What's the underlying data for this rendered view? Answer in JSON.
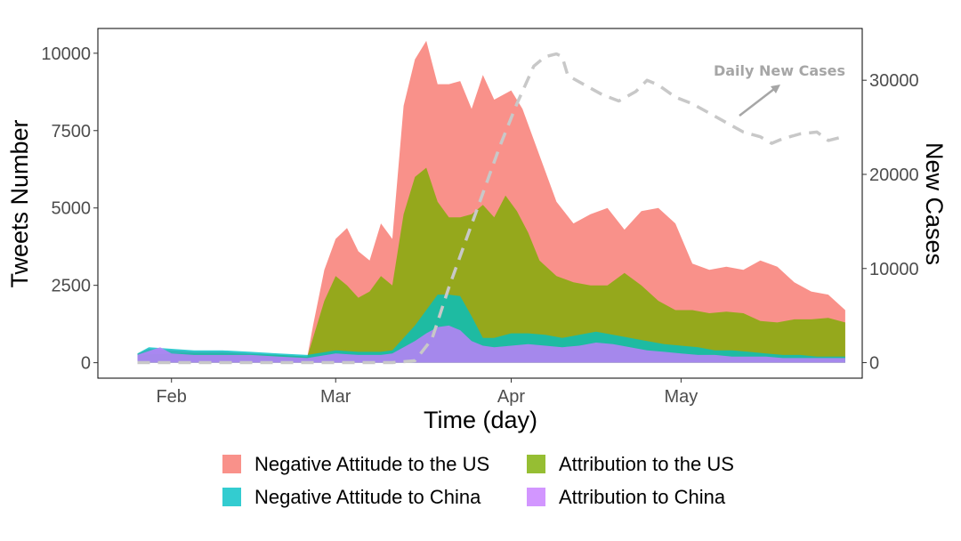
{
  "chart_data": {
    "type": "area",
    "xlabel": "Time (day)",
    "ylabel": "Tweets Number",
    "y2label": "New Cases",
    "x_tick_labels": [
      "Feb",
      "Mar",
      "Apr",
      "May"
    ],
    "x_tick_dates": [
      "2020-02-01",
      "2020-03-01",
      "2020-04-01",
      "2020-05-01"
    ],
    "xlim": [
      "2020-01-19",
      "2020-06-02"
    ],
    "ylim": [
      -500,
      10800
    ],
    "y_ticks": [
      0,
      2500,
      5000,
      7500,
      10000
    ],
    "y_tick_labels": [
      "0",
      "2500",
      "5000",
      "7500",
      "10000"
    ],
    "y2lim": [
      -1650,
      35500
    ],
    "y2_ticks": [
      0,
      10000,
      20000,
      30000
    ],
    "y2_tick_labels": [
      "0",
      "10000",
      "20000",
      "30000"
    ],
    "stacking": "overlapping areas drawn in legend order (each series from zero)",
    "grid": false,
    "legend_position": "bottom",
    "annotation": "Daily New Cases",
    "series": [
      {
        "name": "Negative Attitude to the US",
        "color": "#f8766d",
        "points": [
          [
            "2020-01-26",
            300
          ],
          [
            "2020-01-28",
            450
          ],
          [
            "2020-02-01",
            400
          ],
          [
            "2020-02-05",
            350
          ],
          [
            "2020-02-10",
            350
          ],
          [
            "2020-02-15",
            300
          ],
          [
            "2020-02-20",
            250
          ],
          [
            "2020-02-25",
            200
          ],
          [
            "2020-02-26",
            1200
          ],
          [
            "2020-02-28",
            3000
          ],
          [
            "2020-03-01",
            4000
          ],
          [
            "2020-03-03",
            4350
          ],
          [
            "2020-03-05",
            3600
          ],
          [
            "2020-03-07",
            3300
          ],
          [
            "2020-03-09",
            4500
          ],
          [
            "2020-03-11",
            4000
          ],
          [
            "2020-03-13",
            8300
          ],
          [
            "2020-03-15",
            9800
          ],
          [
            "2020-03-17",
            10400
          ],
          [
            "2020-03-19",
            9000
          ],
          [
            "2020-03-21",
            9000
          ],
          [
            "2020-03-23",
            9100
          ],
          [
            "2020-03-25",
            8200
          ],
          [
            "2020-03-27",
            9300
          ],
          [
            "2020-03-29",
            8500
          ],
          [
            "2020-04-01",
            8800
          ],
          [
            "2020-04-03",
            8200
          ],
          [
            "2020-04-06",
            6700
          ],
          [
            "2020-04-09",
            5200
          ],
          [
            "2020-04-12",
            4500
          ],
          [
            "2020-04-15",
            4800
          ],
          [
            "2020-04-18",
            5000
          ],
          [
            "2020-04-21",
            4300
          ],
          [
            "2020-04-24",
            4900
          ],
          [
            "2020-04-27",
            5000
          ],
          [
            "2020-04-30",
            4500
          ],
          [
            "2020-05-03",
            3200
          ],
          [
            "2020-05-06",
            3000
          ],
          [
            "2020-05-09",
            3100
          ],
          [
            "2020-05-12",
            3000
          ],
          [
            "2020-05-15",
            3300
          ],
          [
            "2020-05-18",
            3100
          ],
          [
            "2020-05-21",
            2600
          ],
          [
            "2020-05-24",
            2300
          ],
          [
            "2020-05-27",
            2200
          ],
          [
            "2020-05-30",
            1700
          ]
        ]
      },
      {
        "name": "Attribution to the US",
        "color": "#7cae00",
        "points": [
          [
            "2020-01-26",
            250
          ],
          [
            "2020-02-01",
            300
          ],
          [
            "2020-02-10",
            300
          ],
          [
            "2020-02-20",
            250
          ],
          [
            "2020-02-25",
            200
          ],
          [
            "2020-02-26",
            800
          ],
          [
            "2020-02-28",
            2000
          ],
          [
            "2020-03-01",
            2800
          ],
          [
            "2020-03-03",
            2500
          ],
          [
            "2020-03-05",
            2100
          ],
          [
            "2020-03-07",
            2300
          ],
          [
            "2020-03-09",
            2800
          ],
          [
            "2020-03-11",
            2500
          ],
          [
            "2020-03-13",
            4800
          ],
          [
            "2020-03-15",
            6000
          ],
          [
            "2020-03-17",
            6300
          ],
          [
            "2020-03-19",
            5200
          ],
          [
            "2020-03-21",
            4700
          ],
          [
            "2020-03-23",
            4700
          ],
          [
            "2020-03-25",
            4800
          ],
          [
            "2020-03-27",
            5100
          ],
          [
            "2020-03-29",
            4700
          ],
          [
            "2020-03-31",
            5400
          ],
          [
            "2020-04-02",
            4900
          ],
          [
            "2020-04-04",
            4200
          ],
          [
            "2020-04-06",
            3300
          ],
          [
            "2020-04-09",
            2800
          ],
          [
            "2020-04-12",
            2600
          ],
          [
            "2020-04-15",
            2500
          ],
          [
            "2020-04-18",
            2500
          ],
          [
            "2020-04-21",
            2900
          ],
          [
            "2020-04-24",
            2500
          ],
          [
            "2020-04-27",
            2000
          ],
          [
            "2020-04-30",
            1700
          ],
          [
            "2020-05-03",
            1700
          ],
          [
            "2020-05-06",
            1600
          ],
          [
            "2020-05-09",
            1650
          ],
          [
            "2020-05-12",
            1600
          ],
          [
            "2020-05-15",
            1350
          ],
          [
            "2020-05-18",
            1300
          ],
          [
            "2020-05-21",
            1400
          ],
          [
            "2020-05-24",
            1400
          ],
          [
            "2020-05-27",
            1450
          ],
          [
            "2020-05-30",
            1300
          ]
        ]
      },
      {
        "name": "Negative Attitude to China",
        "color": "#00bfc4",
        "points": [
          [
            "2020-01-26",
            300
          ],
          [
            "2020-01-28",
            500
          ],
          [
            "2020-02-01",
            450
          ],
          [
            "2020-02-05",
            400
          ],
          [
            "2020-02-10",
            400
          ],
          [
            "2020-02-15",
            350
          ],
          [
            "2020-02-20",
            300
          ],
          [
            "2020-02-25",
            250
          ],
          [
            "2020-03-01",
            400
          ],
          [
            "2020-03-05",
            350
          ],
          [
            "2020-03-09",
            350
          ],
          [
            "2020-03-11",
            400
          ],
          [
            "2020-03-13",
            800
          ],
          [
            "2020-03-15",
            1200
          ],
          [
            "2020-03-17",
            1700
          ],
          [
            "2020-03-19",
            2200
          ],
          [
            "2020-03-21",
            2200
          ],
          [
            "2020-03-23",
            2150
          ],
          [
            "2020-03-25",
            1500
          ],
          [
            "2020-03-27",
            800
          ],
          [
            "2020-03-29",
            800
          ],
          [
            "2020-04-01",
            950
          ],
          [
            "2020-04-04",
            950
          ],
          [
            "2020-04-07",
            900
          ],
          [
            "2020-04-10",
            800
          ],
          [
            "2020-04-13",
            900
          ],
          [
            "2020-04-16",
            1000
          ],
          [
            "2020-04-19",
            900
          ],
          [
            "2020-04-22",
            800
          ],
          [
            "2020-04-25",
            700
          ],
          [
            "2020-04-28",
            600
          ],
          [
            "2020-05-01",
            550
          ],
          [
            "2020-05-04",
            500
          ],
          [
            "2020-05-07",
            400
          ],
          [
            "2020-05-10",
            400
          ],
          [
            "2020-05-13",
            350
          ],
          [
            "2020-05-16",
            300
          ],
          [
            "2020-05-19",
            250
          ],
          [
            "2020-05-22",
            250
          ],
          [
            "2020-05-25",
            200
          ],
          [
            "2020-05-30",
            200
          ]
        ]
      },
      {
        "name": "Attribution to China",
        "color": "#c77cff",
        "points": [
          [
            "2020-01-26",
            250
          ],
          [
            "2020-01-30",
            500
          ],
          [
            "2020-02-01",
            300
          ],
          [
            "2020-02-05",
            250
          ],
          [
            "2020-02-10",
            250
          ],
          [
            "2020-02-15",
            250
          ],
          [
            "2020-02-20",
            200
          ],
          [
            "2020-02-25",
            150
          ],
          [
            "2020-03-01",
            300
          ],
          [
            "2020-03-05",
            250
          ],
          [
            "2020-03-09",
            250
          ],
          [
            "2020-03-11",
            300
          ],
          [
            "2020-03-13",
            500
          ],
          [
            "2020-03-15",
            700
          ],
          [
            "2020-03-17",
            950
          ],
          [
            "2020-03-19",
            1150
          ],
          [
            "2020-03-21",
            1200
          ],
          [
            "2020-03-23",
            1050
          ],
          [
            "2020-03-25",
            700
          ],
          [
            "2020-03-27",
            550
          ],
          [
            "2020-03-29",
            500
          ],
          [
            "2020-04-01",
            550
          ],
          [
            "2020-04-04",
            600
          ],
          [
            "2020-04-07",
            550
          ],
          [
            "2020-04-10",
            500
          ],
          [
            "2020-04-13",
            550
          ],
          [
            "2020-04-16",
            650
          ],
          [
            "2020-04-19",
            600
          ],
          [
            "2020-04-22",
            500
          ],
          [
            "2020-04-25",
            400
          ],
          [
            "2020-04-28",
            350
          ],
          [
            "2020-05-01",
            300
          ],
          [
            "2020-05-04",
            250
          ],
          [
            "2020-05-07",
            250
          ],
          [
            "2020-05-10",
            200
          ],
          [
            "2020-05-13",
            200
          ],
          [
            "2020-05-16",
            200
          ],
          [
            "2020-05-19",
            150
          ],
          [
            "2020-05-22",
            150
          ],
          [
            "2020-05-25",
            150
          ],
          [
            "2020-05-30",
            150
          ]
        ]
      }
    ],
    "cases_line": {
      "name": "Daily New Cases",
      "axis": "right",
      "style": "dashed",
      "color": "#c8c8c8",
      "points": [
        [
          "2020-01-26",
          0
        ],
        [
          "2020-03-01",
          0
        ],
        [
          "2020-03-11",
          0
        ],
        [
          "2020-03-15",
          200
        ],
        [
          "2020-03-18",
          2500
        ],
        [
          "2020-03-21",
          8000
        ],
        [
          "2020-03-24",
          13000
        ],
        [
          "2020-03-27",
          18000
        ],
        [
          "2020-03-30",
          23000
        ],
        [
          "2020-04-02",
          27500
        ],
        [
          "2020-04-05",
          31500
        ],
        [
          "2020-04-07",
          32500
        ],
        [
          "2020-04-09",
          32800
        ],
        [
          "2020-04-10",
          32500
        ],
        [
          "2020-04-11",
          30500
        ],
        [
          "2020-04-14",
          29500
        ],
        [
          "2020-04-17",
          28500
        ],
        [
          "2020-04-20",
          27800
        ],
        [
          "2020-04-23",
          28800
        ],
        [
          "2020-04-25",
          30000
        ],
        [
          "2020-04-27",
          29500
        ],
        [
          "2020-04-30",
          28200
        ],
        [
          "2020-05-03",
          27500
        ],
        [
          "2020-05-06",
          26500
        ],
        [
          "2020-05-09",
          25500
        ],
        [
          "2020-05-12",
          24500
        ],
        [
          "2020-05-15",
          24000
        ],
        [
          "2020-05-17",
          23300
        ],
        [
          "2020-05-19",
          23800
        ],
        [
          "2020-05-22",
          24300
        ],
        [
          "2020-05-25",
          24500
        ],
        [
          "2020-05-27",
          23600
        ],
        [
          "2020-05-29",
          23900
        ]
      ]
    }
  }
}
